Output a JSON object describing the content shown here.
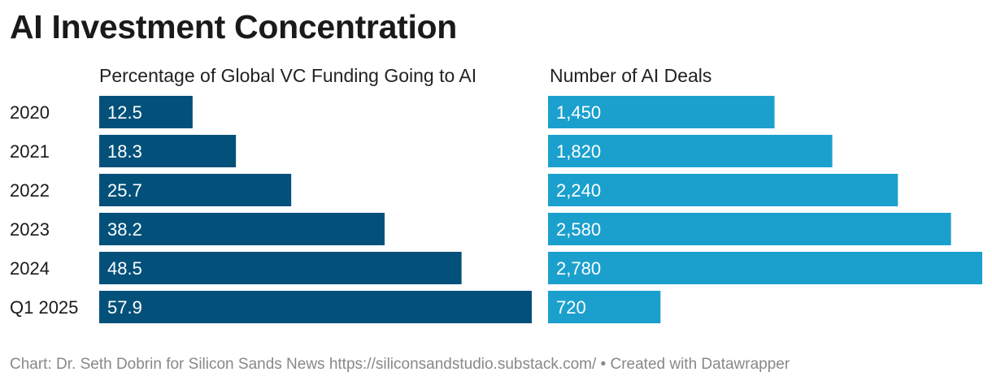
{
  "title": "AI Investment Concentration",
  "footer": "Chart: Dr. Seth Dobrin for Silicon Sands News https://siliconsandstudio.substack.com/ • Created with Datawrapper",
  "colors": {
    "left_bar": "#03517a",
    "right_bar": "#1ba0ce",
    "label_text": "#ffffff"
  },
  "chart_data": {
    "type": "bar",
    "orientation": "horizontal",
    "title": "AI Investment Concentration",
    "categories": [
      "2020",
      "2021",
      "2022",
      "2023",
      "2024",
      "Q1 2025"
    ],
    "series": [
      {
        "name": "Percentage of Global VC Funding  Going to AI",
        "values": [
          12.5,
          18.3,
          25.7,
          38.2,
          48.5,
          57.9
        ],
        "labels": [
          "12.5",
          "18.3",
          "25.7",
          "38.2",
          "48.5",
          "57.9"
        ],
        "xlim": [
          0,
          57.9
        ]
      },
      {
        "name": "Number of AI Deals",
        "values": [
          1450,
          1820,
          2240,
          2580,
          2780,
          720
        ],
        "labels": [
          "1,450",
          "1,820",
          "2,240",
          "2,580",
          "2,780",
          "720"
        ],
        "xlim": [
          0,
          2780
        ]
      }
    ]
  }
}
